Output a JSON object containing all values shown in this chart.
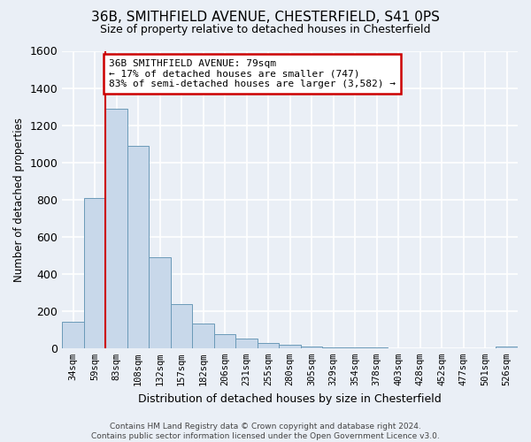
{
  "title": "36B, SMITHFIELD AVENUE, CHESTERFIELD, S41 0PS",
  "subtitle": "Size of property relative to detached houses in Chesterfield",
  "xlabel": "Distribution of detached houses by size in Chesterfield",
  "ylabel": "Number of detached properties",
  "bin_labels": [
    "34sqm",
    "59sqm",
    "83sqm",
    "108sqm",
    "132sqm",
    "157sqm",
    "182sqm",
    "206sqm",
    "231sqm",
    "255sqm",
    "280sqm",
    "305sqm",
    "329sqm",
    "354sqm",
    "378sqm",
    "403sqm",
    "428sqm",
    "452sqm",
    "477sqm",
    "501sqm",
    "526sqm"
  ],
  "bar_heights": [
    140,
    810,
    1290,
    1090,
    490,
    235,
    130,
    75,
    50,
    28,
    20,
    8,
    5,
    3,
    2,
    0,
    0,
    0,
    0,
    0,
    8
  ],
  "bar_color": "#c8d8ea",
  "bar_edge_color": "#6b9ab8",
  "ylim": [
    0,
    1600
  ],
  "yticks": [
    0,
    200,
    400,
    600,
    800,
    1000,
    1200,
    1400,
    1600
  ],
  "property_bin_index": 2,
  "vline_color": "#cc0000",
  "annotation_line1": "36B SMITHFIELD AVENUE: 79sqm",
  "annotation_line2": "← 17% of detached houses are smaller (747)",
  "annotation_line3": "83% of semi-detached houses are larger (3,582) →",
  "annotation_box_color": "#ffffff",
  "annotation_box_edge": "#cc0000",
  "footer_text": "Contains HM Land Registry data © Crown copyright and database right 2024.\nContains public sector information licensed under the Open Government Licence v3.0.",
  "background_color": "#eaeff6",
  "plot_bg_color": "#eaeff6",
  "grid_color": "#ffffff"
}
